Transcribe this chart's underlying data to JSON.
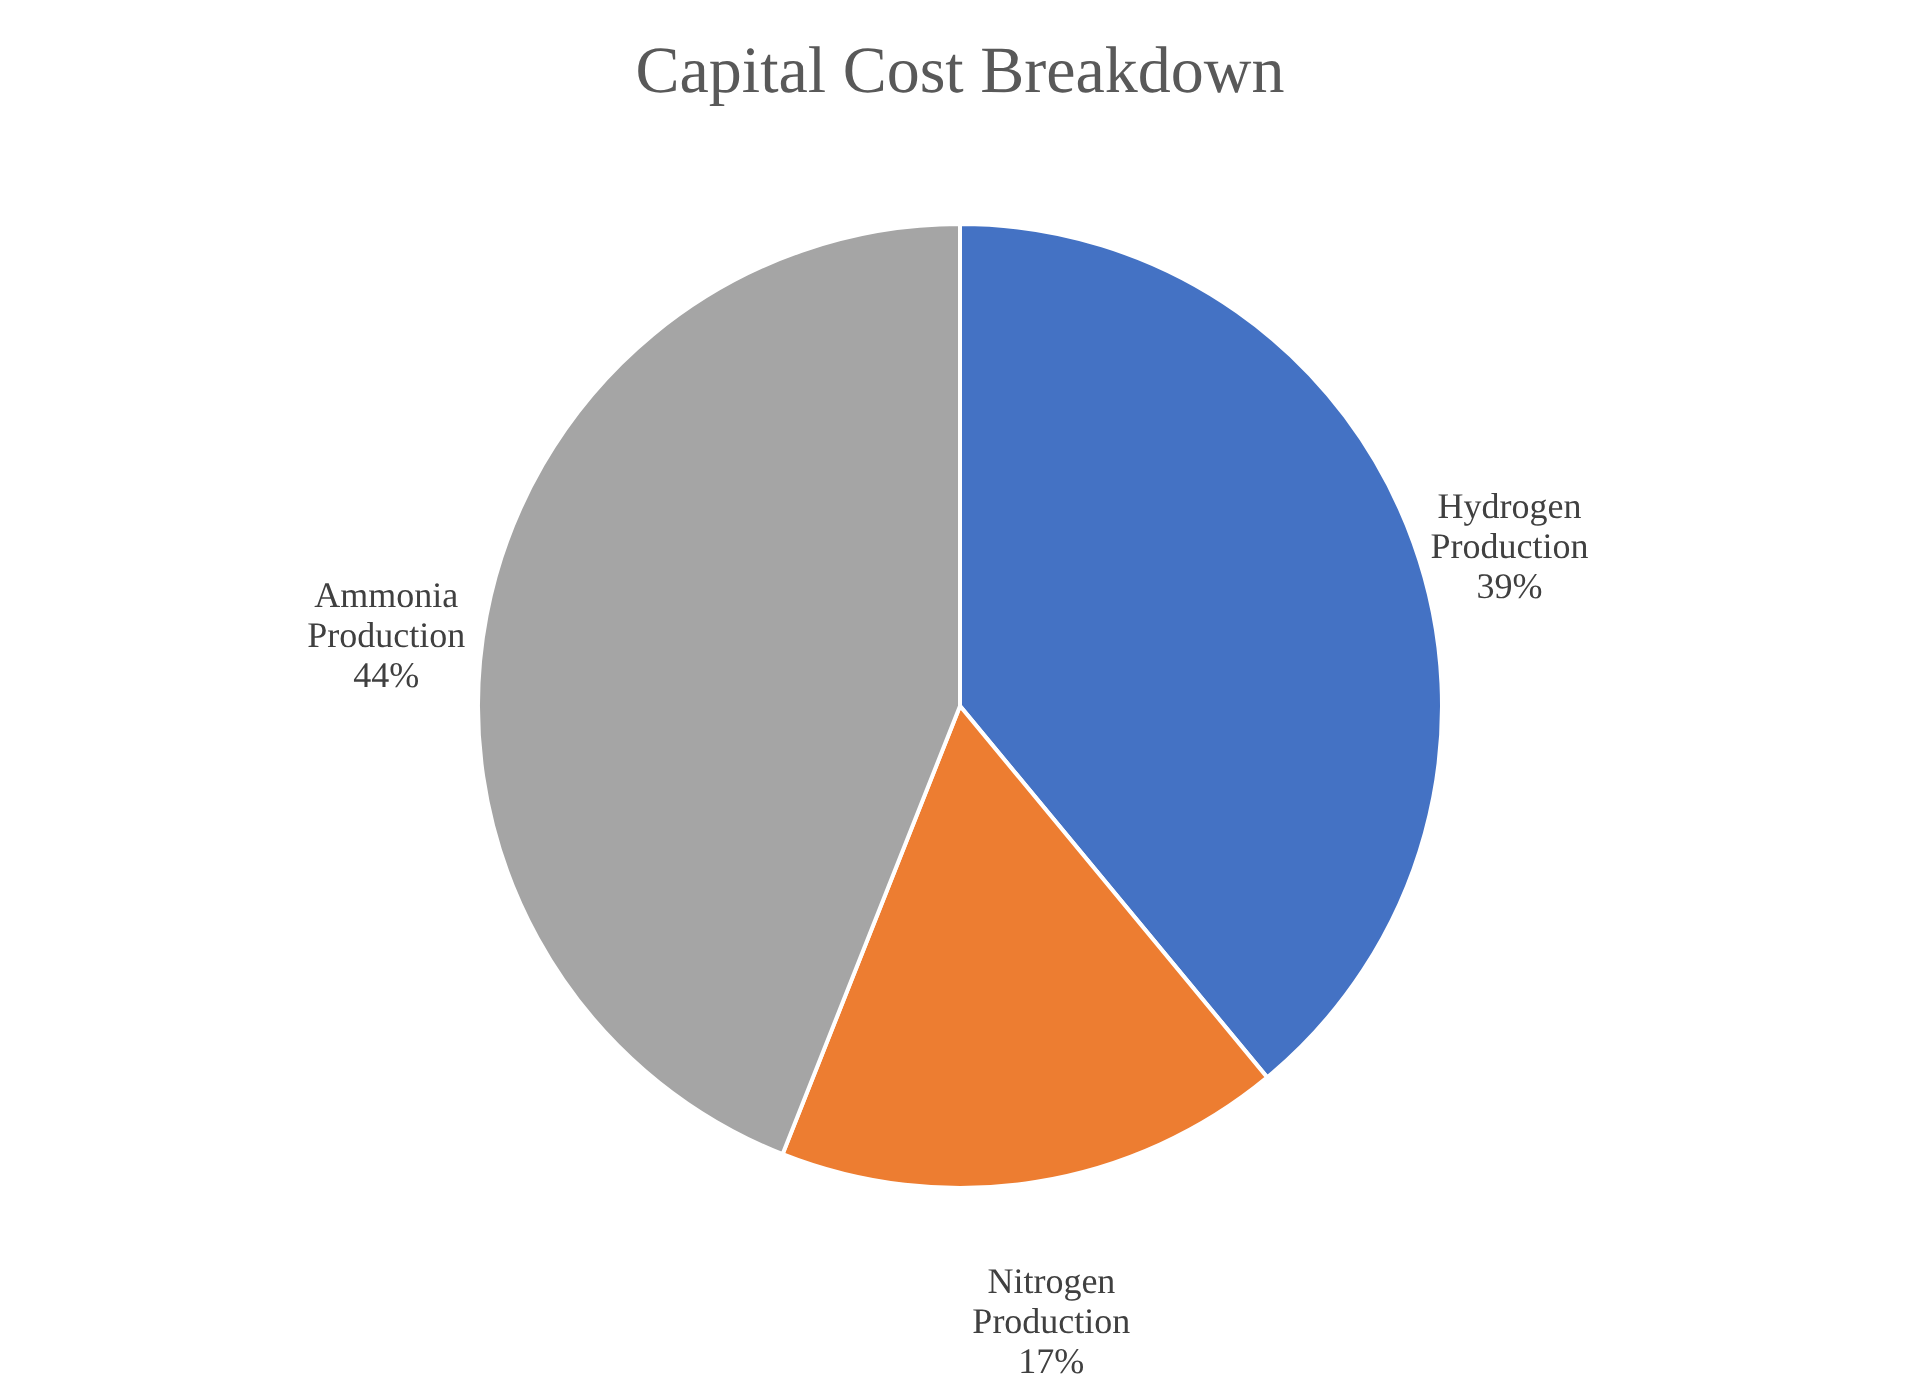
{
  "chart_data": {
    "type": "pie",
    "title": "Capital Cost Breakdown",
    "categories": [
      "Hydrogen Production",
      "Nitrogen Production",
      "Ammonia Production"
    ],
    "values": [
      39,
      17,
      44
    ],
    "colors": [
      "#4472c4",
      "#ed7d31",
      "#a5a5a5"
    ],
    "value_labels": [
      "39%",
      "17%",
      "44%"
    ],
    "legend": false
  }
}
